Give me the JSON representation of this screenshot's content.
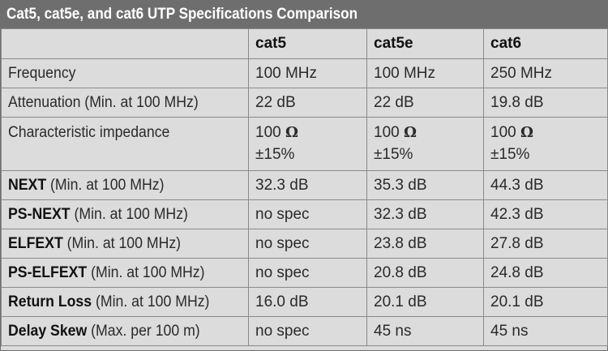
{
  "title": "Cat5, cat5e, and cat6 UTP Specifications Comparison",
  "columns": [
    "",
    "cat5",
    "cat5e",
    "cat6"
  ],
  "rows": [
    {
      "name": "Frequency",
      "note": "",
      "values": [
        "100 MHz",
        "100 MHz",
        "250 MHz"
      ]
    },
    {
      "name": "Attenuation (Min. at 100 MHz)",
      "note": "",
      "values": [
        "22 dB",
        "22 dB",
        "19.8 dB"
      ]
    },
    {
      "name": "Characteristic impedance",
      "note": "",
      "values": [
        {
          "main": "100",
          "unit": "Ω",
          "tol": "±15%"
        },
        {
          "main": "100",
          "unit": "Ω",
          "tol": "±15%"
        },
        {
          "main": "100",
          "unit": "Ω",
          "tol": "±15%"
        }
      ]
    },
    {
      "name": "NEXT",
      "note": " (Min. at 100 MHz)",
      "values": [
        "32.3 dB",
        "35.3 dB",
        "44.3 dB"
      ]
    },
    {
      "name": "PS-NEXT",
      "note": " (Min. at 100 MHz)",
      "values": [
        "no spec",
        "32.3 dB",
        "42.3 dB"
      ]
    },
    {
      "name": "ELFEXT",
      "note": " (Min. at 100 MHz)",
      "values": [
        "no spec",
        "23.8 dB",
        "27.8 dB"
      ]
    },
    {
      "name": "PS-ELFEXT",
      "note": " (Min. at 100 MHz)",
      "values": [
        "no spec",
        "20.8 dB",
        "24.8 dB"
      ]
    },
    {
      "name": "Return Loss",
      "note": " (Min. at 100 MHz)",
      "values": [
        "16.0 dB",
        "20.1 dB",
        "20.1 dB"
      ]
    },
    {
      "name": "Delay Skew",
      "note": " (Max. per 100 m)",
      "values": [
        "no spec",
        "45 ns",
        "45 ns"
      ]
    }
  ]
}
